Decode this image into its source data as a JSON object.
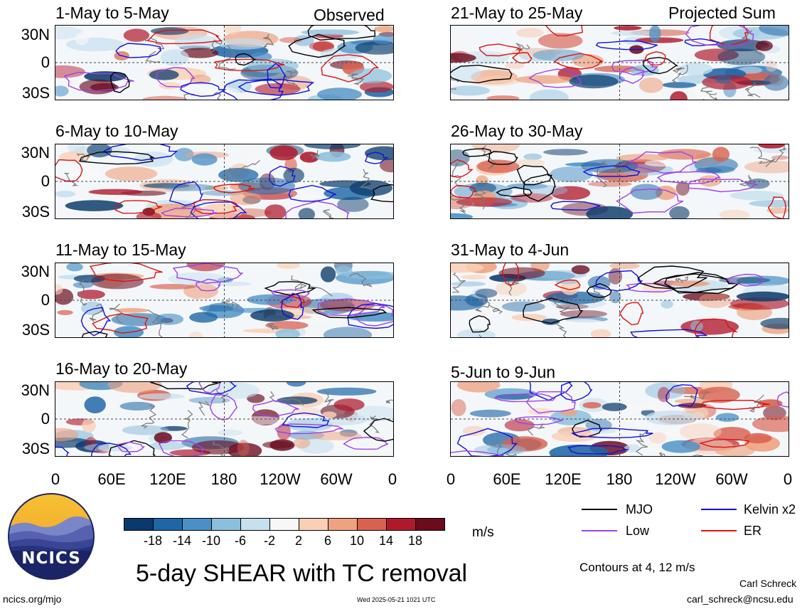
{
  "headers": {
    "left": "Observed",
    "right": "Projected Sum"
  },
  "panels": [
    {
      "title": "1-May to 5-May",
      "column": "observed"
    },
    {
      "title": "6-May to 10-May",
      "column": "observed"
    },
    {
      "title": "11-May to 15-May",
      "column": "observed"
    },
    {
      "title": "16-May to 20-May",
      "column": "observed"
    },
    {
      "title": "21-May to 25-May",
      "column": "projected"
    },
    {
      "title": "26-May to 30-May",
      "column": "projected"
    },
    {
      "title": "31-May to 4-Jun",
      "column": "projected"
    },
    {
      "title": "5-Jun to 9-Jun",
      "column": "projected"
    }
  ],
  "lat_labels": [
    "30N",
    "0",
    "30S"
  ],
  "lon_labels": [
    "0",
    "60E",
    "120E",
    "180",
    "120W",
    "60W",
    "0"
  ],
  "colorbar": {
    "ticks": [
      "-18",
      "-14",
      "-10",
      "-6",
      "-2",
      "2",
      "6",
      "10",
      "14",
      "18"
    ],
    "colors": [
      "#0a3a6b",
      "#1f66a6",
      "#4a90c4",
      "#8cbfdd",
      "#c6e0ee",
      "#f7f7f7",
      "#f9cfb6",
      "#eea27f",
      "#d86250",
      "#b0192c",
      "#6b0b1d"
    ],
    "units": "m/s"
  },
  "legend": {
    "items": [
      {
        "label": "MJO",
        "color": "#000000"
      },
      {
        "label": "Kelvin x2",
        "color": "#1010e0"
      },
      {
        "label": "Low",
        "color": "#a040e8"
      },
      {
        "label": "ER",
        "color": "#e01010"
      }
    ],
    "note": "Contours at 4, 12 m/s"
  },
  "title": "5-day SHEAR with TC removal",
  "logo_text": "NCICS",
  "footer": {
    "url": "ncics.org/mjo",
    "timestamp": "Wed 2025-05-21 1021 UTC",
    "author": "Carl Schreck",
    "email": "carl_schreck@ncsu.edu"
  }
}
